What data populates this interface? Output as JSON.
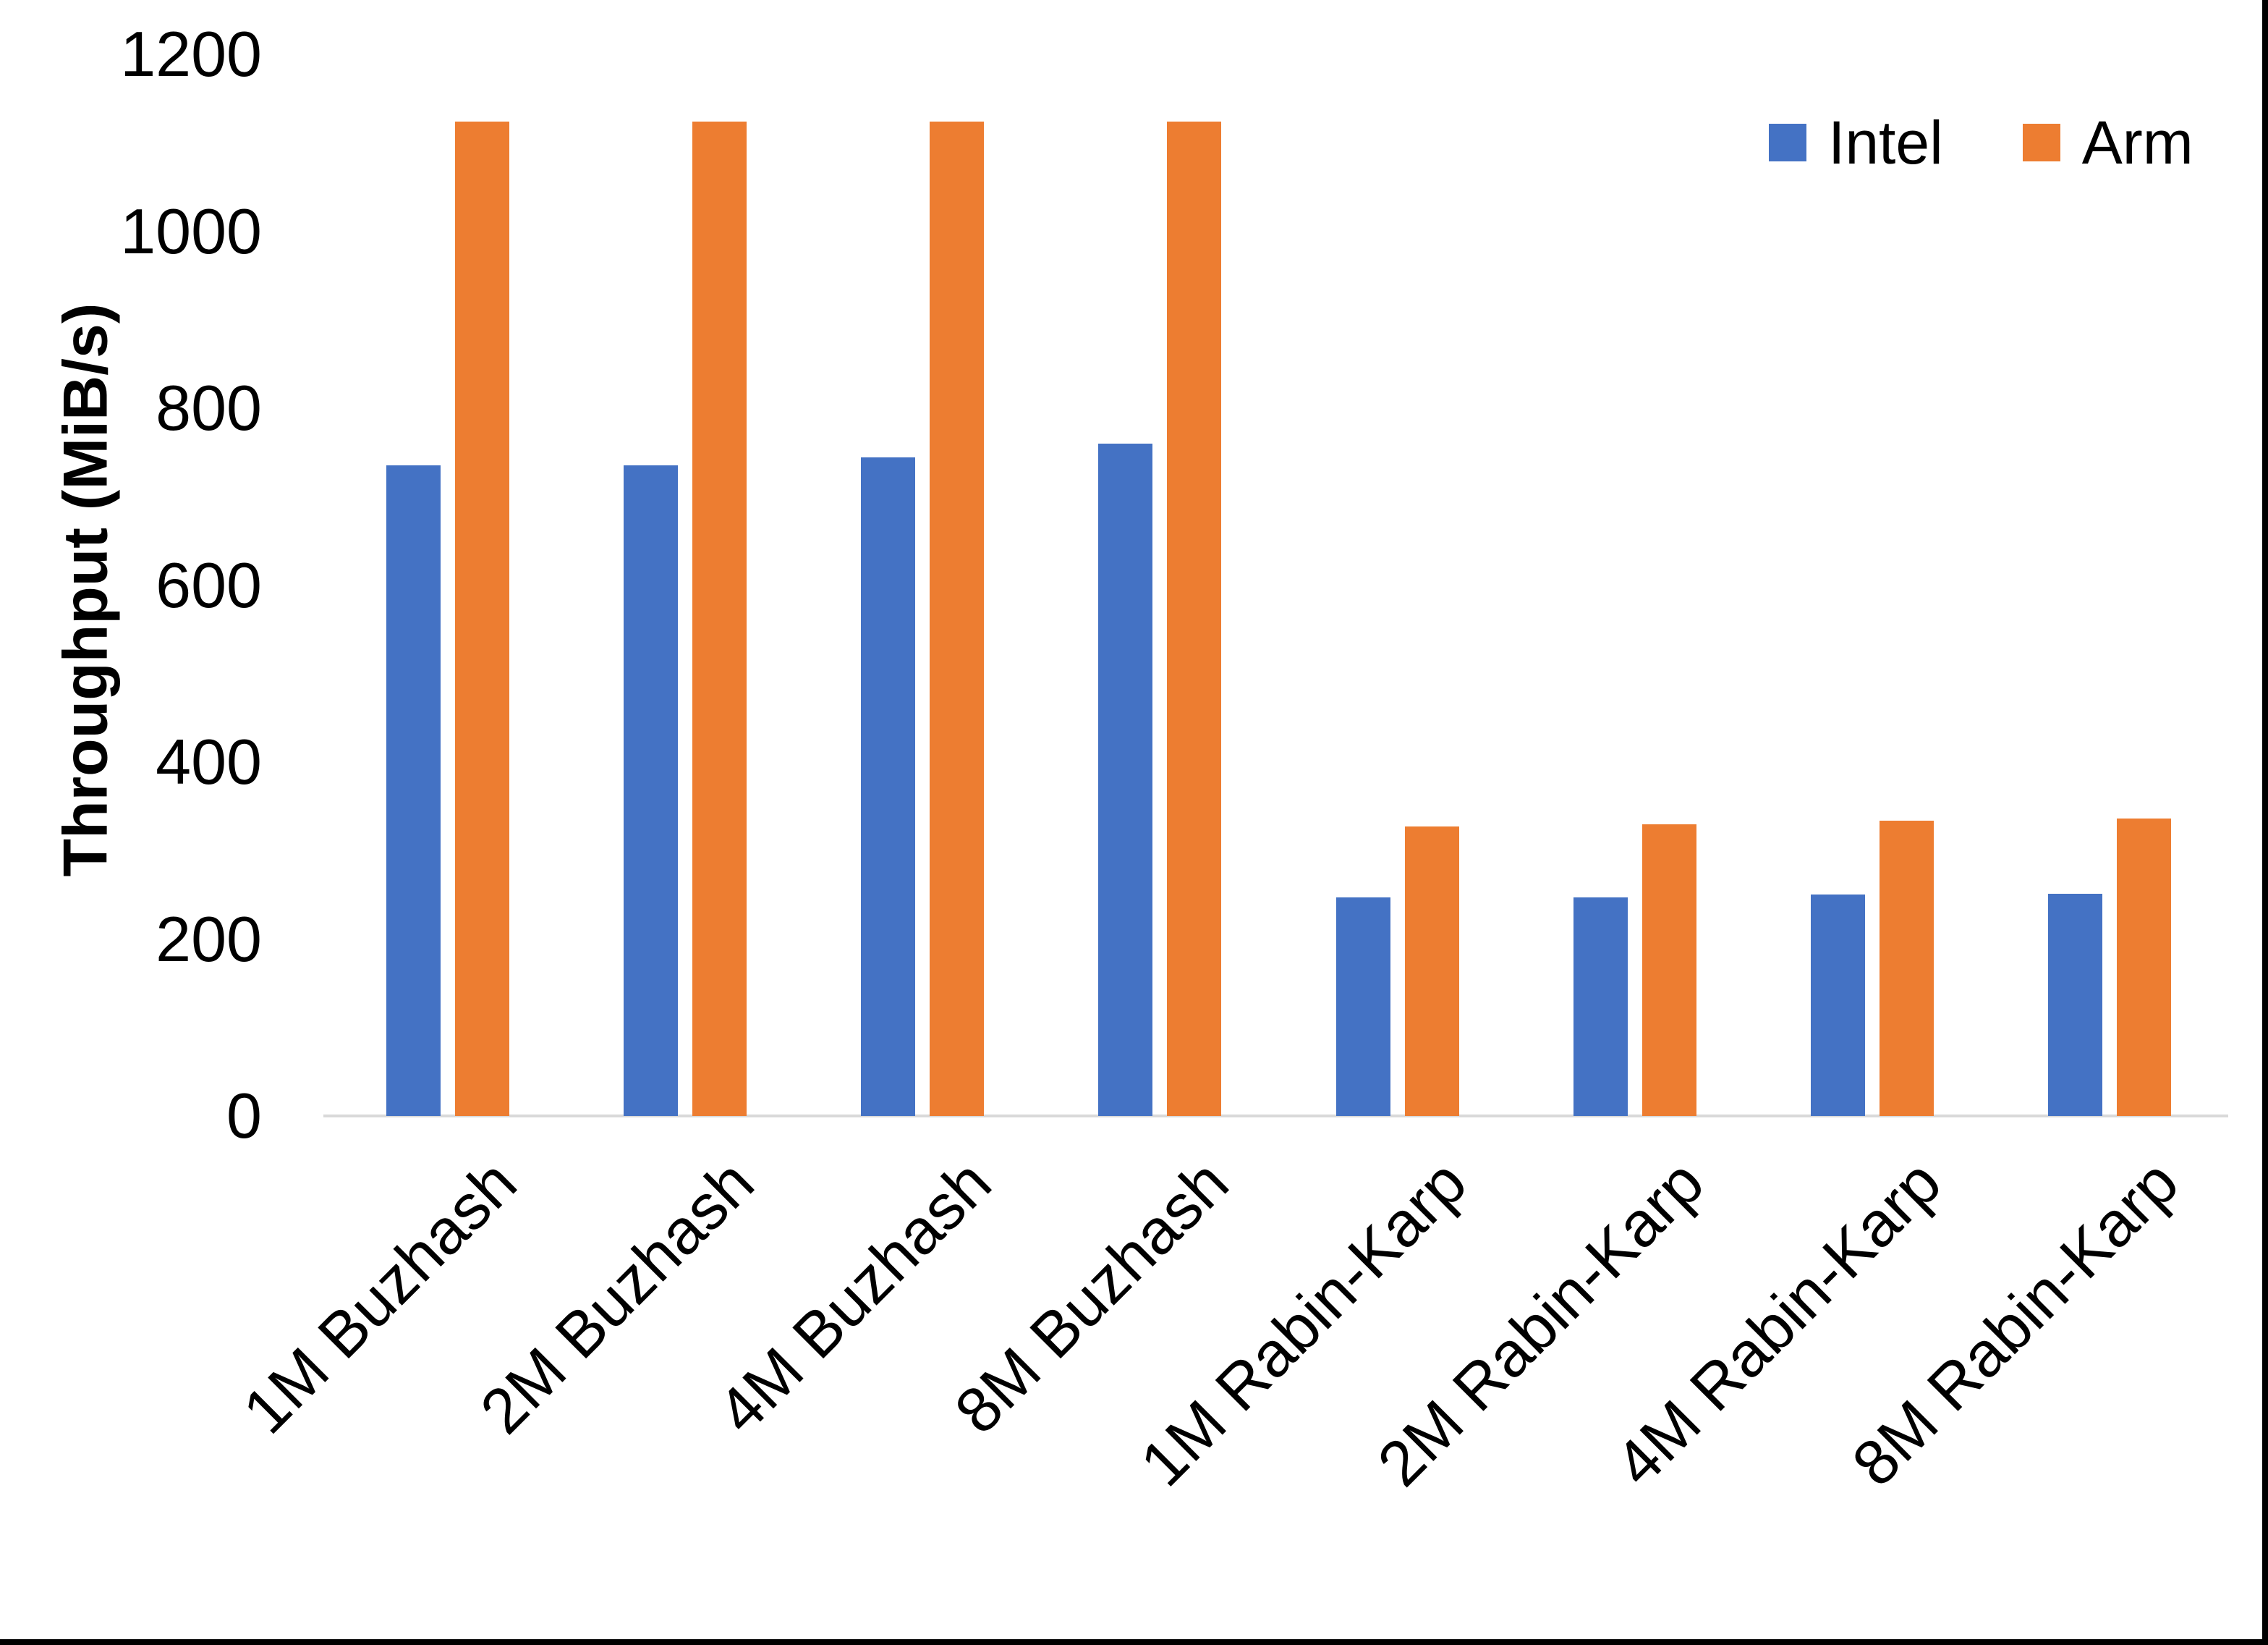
{
  "chart_data": {
    "type": "bar",
    "title": "",
    "categories": [
      "1M Buzhash",
      "2M Buzhash",
      "4M Buzhash",
      "8M Buzhash",
      "1M Rabin-Karp",
      "2M Rabin-Karp",
      "4M Rabin-Karp",
      "8M Rabin-Karp"
    ],
    "series": [
      {
        "name": "Intel",
        "color": "#4472C4",
        "values": [
          735,
          735,
          744,
          760,
          247,
          247,
          250,
          251
        ]
      },
      {
        "name": "Arm",
        "color": "#ED7D31",
        "values": [
          1124,
          1124,
          1124,
          1124,
          327,
          330,
          334,
          336
        ]
      }
    ],
    "xlabel": "",
    "ylabel": "Throughput (MiB/s)",
    "ylim": [
      0,
      1200
    ],
    "yticks": [
      0,
      200,
      400,
      600,
      800,
      1000,
      1200
    ],
    "grid": false,
    "legend_position": "top-right"
  },
  "colors": {
    "background": "#FFFFFF",
    "text": "#000000",
    "axis_line": "#D9D9D9",
    "page_border": "#000000"
  }
}
